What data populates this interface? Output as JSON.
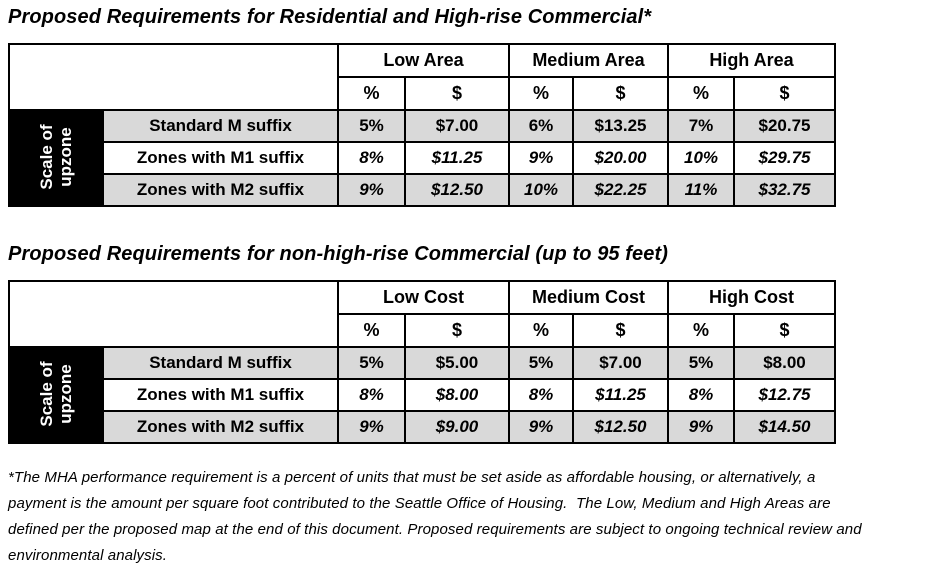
{
  "tables": [
    {
      "title": "Proposed Requirements for Residential and High-rise Commercial*",
      "side_label": "Scale of upzone",
      "col_groups": [
        "Low Area",
        "Medium Area",
        "High Area"
      ],
      "sub_headers": [
        "%",
        "$",
        "%",
        "$",
        "%",
        "$"
      ],
      "rows": [
        {
          "label": "Standard M suffix",
          "values": [
            "5%",
            "$7.00",
            "6%",
            "$13.25",
            "7%",
            "$20.75"
          ]
        },
        {
          "label": "Zones with M1 suffix",
          "values": [
            "8%",
            "$11.25",
            "9%",
            "$20.00",
            "10%",
            "$29.75"
          ]
        },
        {
          "label": "Zones with M2 suffix",
          "values": [
            "9%",
            "$12.50",
            "10%",
            "$22.25",
            "11%",
            "$32.75"
          ]
        }
      ]
    },
    {
      "title": "Proposed Requirements for non-high-rise Commercial (up to 95 feet)",
      "side_label": "Scale of upzone",
      "col_groups": [
        "Low Cost",
        "Medium Cost",
        "High Cost"
      ],
      "sub_headers": [
        "%",
        "$",
        "%",
        "$",
        "%",
        "$"
      ],
      "rows": [
        {
          "label": "Standard M suffix",
          "values": [
            "5%",
            "$5.00",
            "5%",
            "$7.00",
            "5%",
            "$8.00"
          ]
        },
        {
          "label": "Zones with M1 suffix",
          "values": [
            "8%",
            "$8.00",
            "8%",
            "$11.25",
            "8%",
            "$12.75"
          ]
        },
        {
          "label": "Zones with M2 suffix",
          "values": [
            "9%",
            "$9.00",
            "9%",
            "$12.50",
            "9%",
            "$14.50"
          ]
        }
      ]
    }
  ],
  "footnote": {
    "lines": [
      "*The MHA performance requirement is a percent of units that must be set aside as affordable housing, or alternatively, a",
      "payment is the amount per square foot contributed to the Seattle Office of Housing.  The Low, Medium and High Areas are",
      "defined per the proposed map at the end of this document. Proposed requirements are subject to ongoing technical review and",
      "environmental analysis."
    ]
  },
  "colors": {
    "shaded_row": "#d9d9d9",
    "plain_row": "#ffffff",
    "side_label_bg": "#000000",
    "side_label_text": "#ffffff",
    "border": "#000000"
  }
}
